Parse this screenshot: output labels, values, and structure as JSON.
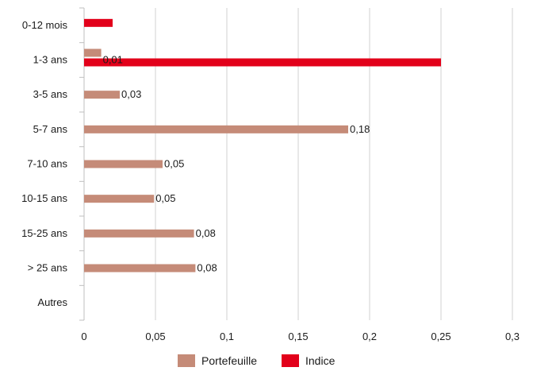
{
  "chart_data": {
    "type": "bar",
    "orientation": "horizontal",
    "categories": [
      "0-12 mois",
      "1-3 ans",
      "3-5 ans",
      "5-7 ans",
      "7-10 ans",
      "10-15 ans",
      "15-25 ans",
      "> 25 ans",
      "Autres"
    ],
    "series": [
      {
        "name": "Portefeuille",
        "color": "#c58b78",
        "values": [
          null,
          0.012,
          0.025,
          0.185,
          0.055,
          0.049,
          0.077,
          0.078,
          null
        ],
        "labels": [
          "",
          "0,01",
          "0,03",
          "0,18",
          "0,05",
          "0,05",
          "0,08",
          "0,08",
          ""
        ]
      },
      {
        "name": "Indice",
        "color": "#e2001a",
        "values": [
          0.02,
          0.25,
          null,
          null,
          null,
          null,
          null,
          null,
          null
        ],
        "labels": [
          "",
          "",
          "",
          "",
          "",
          "",
          "",
          "",
          ""
        ]
      }
    ],
    "xlim": [
      0,
      0.3
    ],
    "xticks": [
      0,
      0.05,
      0.1,
      0.15,
      0.2,
      0.25,
      0.3
    ],
    "xtick_labels": [
      "0",
      "0,05",
      "0,1",
      "0,15",
      "0,2",
      "0,25",
      "0,3"
    ],
    "grid": "vertical",
    "legend": "bottom",
    "title": "",
    "xlabel": "",
    "ylabel": ""
  }
}
